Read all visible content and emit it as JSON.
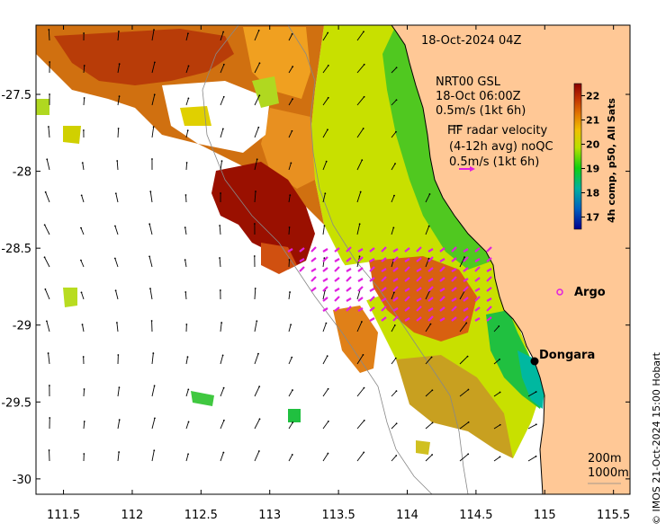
{
  "map": {
    "date_title": "18-Oct-2024 04Z",
    "wind_lines": [
      "NRT00 GSL",
      "18-Oct 06:00Z",
      "0.5m/s (1kt 6h)"
    ],
    "radar_lines": [
      "HF radar velocity",
      "(4-12h avg) noQC",
      "0.5m/s (1kt 6h)"
    ],
    "colorbar": {
      "label": "4h comp, p50, All Sats",
      "ticks": [
        "22",
        "21",
        "20",
        "19",
        "18",
        "17"
      ],
      "range": [
        16.5,
        22.5
      ],
      "colors": [
        "#00008f",
        "#00a0c0",
        "#00c870",
        "#10d010",
        "#b8e000",
        "#f0c000",
        "#e07000",
        "#c03000",
        "#8b0000"
      ]
    },
    "x_ticks": [
      "111.5",
      "112",
      "112.5",
      "113",
      "113.5",
      "114",
      "114.5",
      "115",
      "115.5"
    ],
    "y_ticks": [
      "-27.5",
      "-28",
      "-28.5",
      "-29",
      "-29.5",
      "-30"
    ],
    "extent": {
      "lon": [
        111.3,
        115.62
      ],
      "lat": [
        -30.1,
        -27.05
      ]
    },
    "places": [
      {
        "name": "Argo",
        "lon": 115.04,
        "lat": -28.82,
        "marker": "circle-magenta"
      },
      {
        "name": "Dongara",
        "lon": 114.93,
        "lat": -29.25,
        "marker": "dot-black"
      }
    ],
    "contours": [
      "200m",
      "1000m"
    ],
    "credit": "© IMOS 21-Oct-2024 15:00 Hobart",
    "land_color": "#ffc896",
    "radar_color": "#e020e0"
  }
}
